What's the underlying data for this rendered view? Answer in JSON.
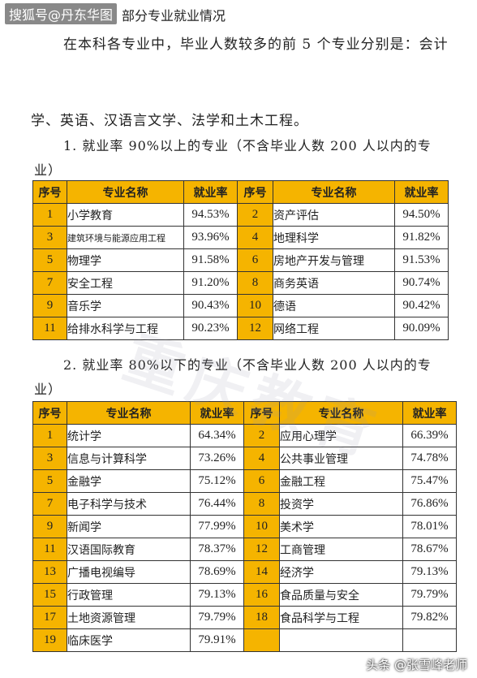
{
  "watermark_top": "搜狐号@丹东华图",
  "heading": "部分专业就业情况",
  "paragraph_line1": "在本科各专业中，毕业人数较多的前 5 个专业分别是：会计",
  "paragraph_line2": "学、英语、汉语言文学、法学和土木工程。",
  "section1": {
    "line1": "1. 就业率 90%以上的专业（不含毕业人数 200 人以内的专",
    "line2": "业）",
    "headers": [
      "序号",
      "专业名称",
      "就业率",
      "序号",
      "专业名称",
      "就业率"
    ],
    "rows": [
      [
        "1",
        "小学教育",
        "94.53%",
        "2",
        "资产评估",
        "94.50%"
      ],
      [
        "3",
        "建筑环境与能源应用工程",
        "93.96%",
        "4",
        "地理科学",
        "91.82%"
      ],
      [
        "5",
        "物理学",
        "91.58%",
        "6",
        "房地产开发与管理",
        "91.53%"
      ],
      [
        "7",
        "安全工程",
        "91.20%",
        "8",
        "商务英语",
        "90.74%"
      ],
      [
        "9",
        "音乐学",
        "90.43%",
        "10",
        "德语",
        "90.42%"
      ],
      [
        "11",
        "给排水科学与工程",
        "90.23%",
        "12",
        "网络工程",
        "90.09%"
      ]
    ]
  },
  "section2": {
    "line1": "2. 就业率 80%以下的专业（不含毕业人数 200 人以内的专",
    "line2": "业）",
    "headers": [
      "序号",
      "专业名称",
      "就业率",
      "序号",
      "专业名称",
      "就业率"
    ],
    "rows": [
      [
        "1",
        "统计学",
        "64.34%",
        "2",
        "应用心理学",
        "66.39%"
      ],
      [
        "3",
        "信息与计算科学",
        "73.26%",
        "4",
        "公共事业管理",
        "74.78%"
      ],
      [
        "5",
        "金融学",
        "75.12%",
        "6",
        "金融工程",
        "75.47%"
      ],
      [
        "7",
        "电子科学与技术",
        "76.44%",
        "8",
        "投资学",
        "76.86%"
      ],
      [
        "9",
        "新闻学",
        "77.99%",
        "10",
        "美术学",
        "78.01%"
      ],
      [
        "11",
        "汉语国际教育",
        "78.37%",
        "12",
        "工商管理",
        "78.67%"
      ],
      [
        "13",
        "广播电视编导",
        "78.69%",
        "14",
        "经济学",
        "79.13%"
      ],
      [
        "15",
        "行政管理",
        "79.13%",
        "16",
        "食品质量与安全",
        "79.79%"
      ],
      [
        "17",
        "土地资源管理",
        "79.79%",
        "18",
        "食品科学与工程",
        "79.82%"
      ],
      [
        "19",
        "临床医学",
        "79.91%",
        "",
        "",
        ""
      ]
    ]
  },
  "background_watermark": "重庆教育",
  "watermark_bottom": "头条 @张雪峰老师"
}
